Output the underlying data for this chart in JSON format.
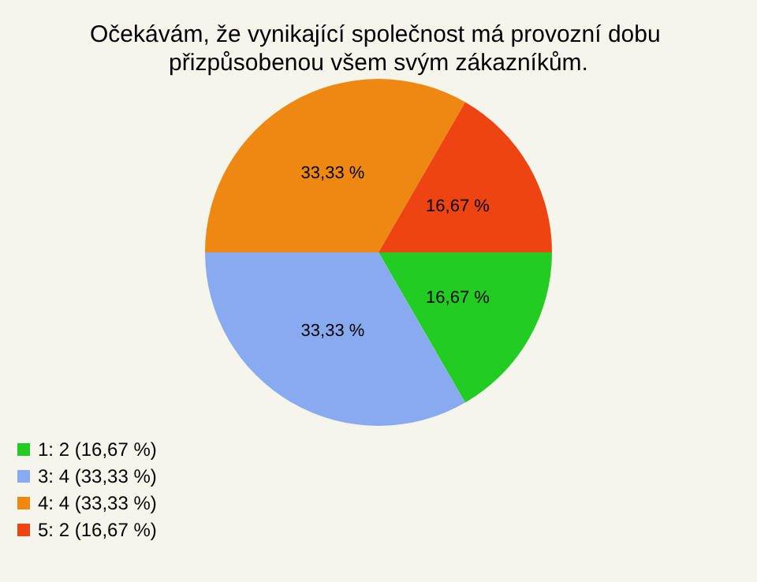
{
  "chart_data": {
    "type": "pie",
    "title": "Očekávám, že vynikající společnost má provozní dobu přizpůsobenou všem svým zákazníkům.",
    "categories": [
      "1: 2 (16,67 %)",
      "3: 4 (33,33 %)",
      "4: 4 (33,33 %)",
      "5: 2 (16,67 %)"
    ],
    "values": [
      16.67,
      33.33,
      33.33,
      16.67
    ],
    "colors": [
      "#22cc22",
      "#88aaee",
      "#ee8811",
      "#ee4411"
    ],
    "value_labels": [
      "16,67 %",
      "33,33 %",
      "33,33 %",
      "16,67 %"
    ],
    "legend": "bottom left"
  }
}
